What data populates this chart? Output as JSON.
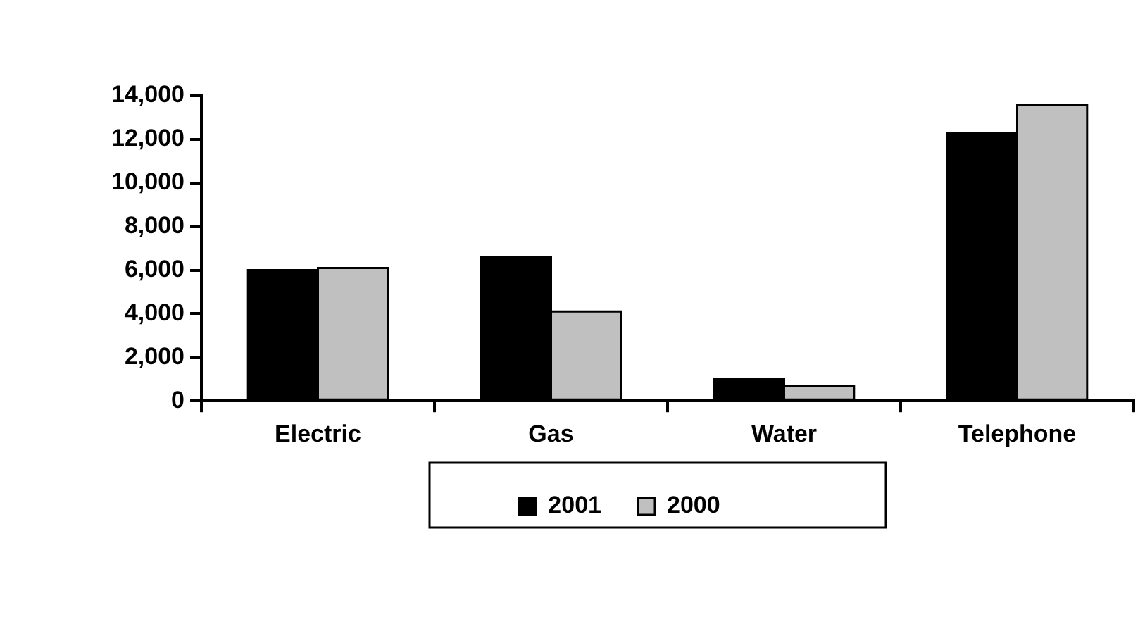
{
  "chart_data": {
    "type": "bar",
    "categories": [
      "Electric",
      "Gas",
      "Water",
      "Telephone"
    ],
    "series": [
      {
        "name": "2001",
        "color": "#000000",
        "values": [
          6000,
          6600,
          1000,
          12300
        ]
      },
      {
        "name": "2000",
        "color": "#c0c0c0",
        "values": [
          6100,
          4100,
          700,
          13600
        ]
      }
    ],
    "ylim": [
      0,
      14000
    ],
    "yticks": [
      0,
      {
        "value": 2000,
        "label": "2,000"
      },
      {
        "value": 4000,
        "label": "4,000"
      },
      {
        "value": 6000,
        "label": "6,000"
      },
      {
        "value": 8000,
        "label": "8,000"
      },
      {
        "value": 10000,
        "label": "10,000"
      },
      {
        "value": 12000,
        "label": "12,000"
      },
      {
        "value": 14000,
        "label": "14,000"
      }
    ],
    "grid": false,
    "legend": "bottom"
  }
}
